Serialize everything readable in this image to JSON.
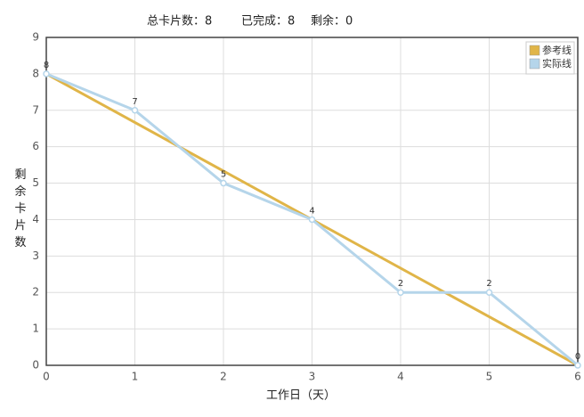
{
  "chart_data": {
    "type": "line",
    "header": [
      "总卡片数：8",
      "已完成：8",
      "剩余：0"
    ],
    "xlabel": "工作日（天）",
    "ylabel": "剩余卡片数",
    "xlim": [
      0,
      6
    ],
    "xticks": [
      0,
      1,
      2,
      3,
      4,
      5,
      6
    ],
    "ylim": [
      0,
      9
    ],
    "yticks": [
      0,
      1,
      2,
      3,
      4,
      5,
      6,
      7,
      8,
      9
    ],
    "grid": true,
    "legend": "top-right",
    "series": [
      {
        "name": "参考线",
        "color": "#e0b548",
        "x": [
          0,
          6
        ],
        "values": [
          8,
          0
        ],
        "markers": false,
        "labels": false
      },
      {
        "name": "实际线",
        "color": "#b5d5ea",
        "x": [
          0,
          1,
          2,
          3,
          4,
          5,
          6
        ],
        "values": [
          8,
          7,
          5,
          4,
          2,
          2,
          0
        ],
        "markers": true,
        "labels": true
      }
    ]
  }
}
